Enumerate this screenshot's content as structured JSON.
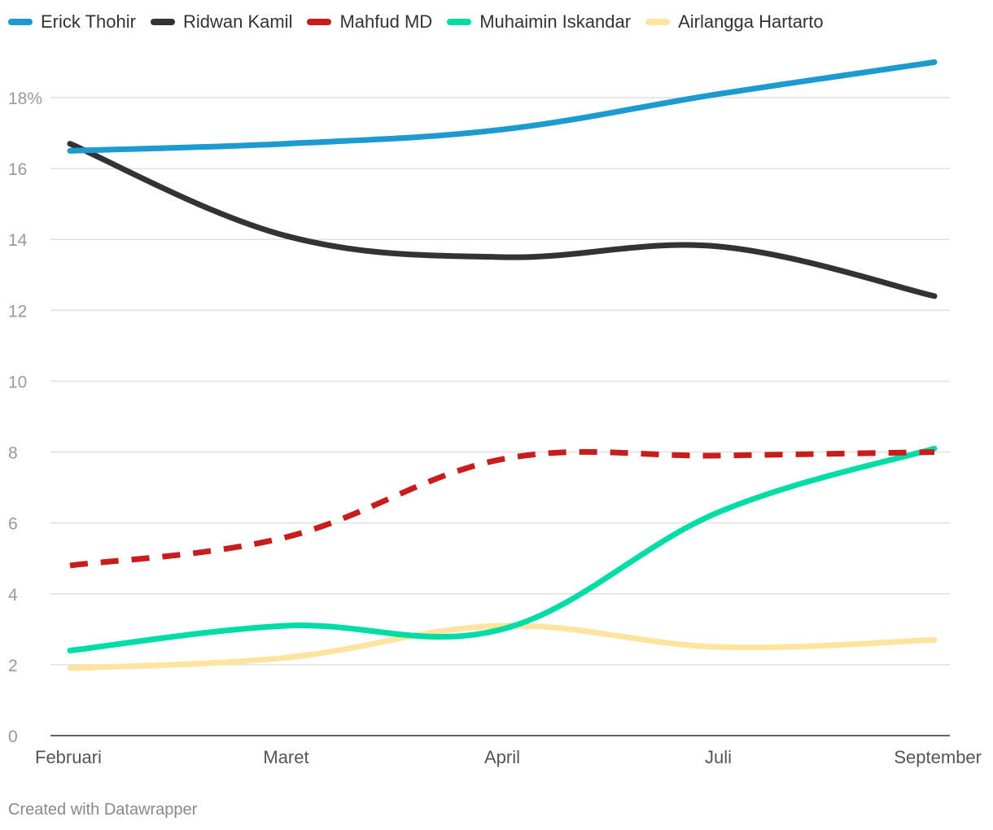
{
  "chart_data": {
    "type": "line",
    "title": "",
    "xlabel": "",
    "ylabel": "",
    "categories": [
      "Februari",
      "Maret",
      "April",
      "Juli",
      "September"
    ],
    "ylim": [
      0,
      19.5
    ],
    "yticks": [
      0,
      2,
      4,
      6,
      8,
      10,
      12,
      14,
      16,
      18
    ],
    "ytick_labels": [
      "0",
      "2",
      "4",
      "6",
      "8",
      "10",
      "12",
      "14",
      "16",
      "18%"
    ],
    "grid": true,
    "legend_position": "top-left",
    "series": [
      {
        "name": "Erick Thohir",
        "color": "#1d9bd1",
        "dashed": false,
        "values": [
          16.5,
          16.7,
          17.1,
          18.1,
          19.0
        ]
      },
      {
        "name": "Ridwan Kamil",
        "color": "#333333",
        "dashed": false,
        "values": [
          16.7,
          14.1,
          13.5,
          13.8,
          12.4
        ]
      },
      {
        "name": "Mahfud MD",
        "color": "#c71e1d",
        "dashed": true,
        "values": [
          4.8,
          5.6,
          7.8,
          7.9,
          8.0
        ]
      },
      {
        "name": "Muhaimin Iskandar",
        "color": "#00dca6",
        "dashed": false,
        "values": [
          2.4,
          3.1,
          3.0,
          6.3,
          8.1
        ]
      },
      {
        "name": "Airlangga Hartarto",
        "color": "#fee49e",
        "dashed": false,
        "values": [
          1.9,
          2.2,
          3.1,
          2.5,
          2.7
        ]
      }
    ]
  },
  "footer": {
    "credit": "Created with Datawrapper"
  }
}
